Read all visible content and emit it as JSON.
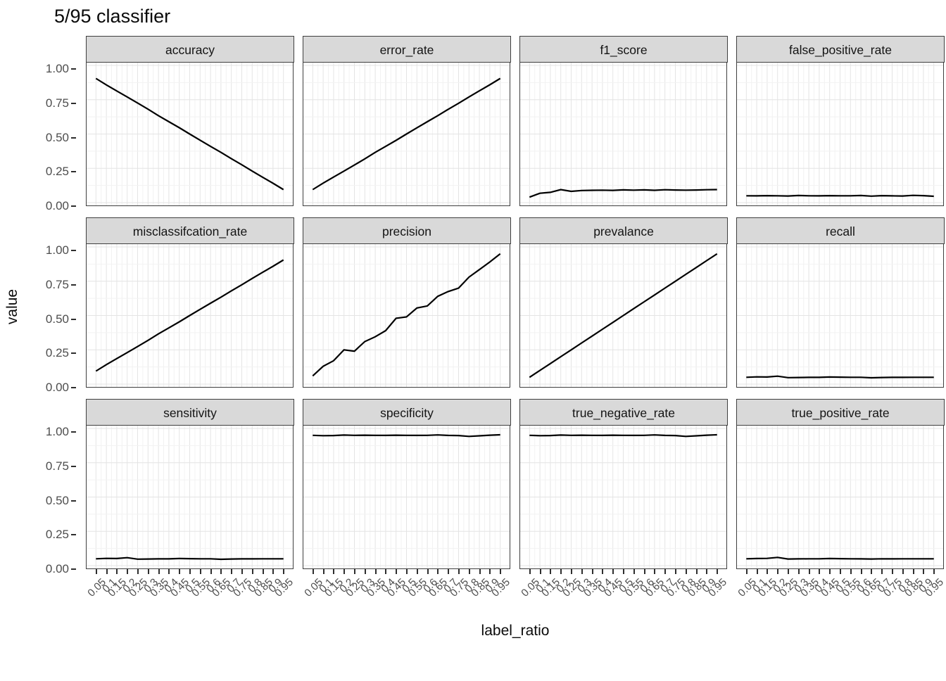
{
  "title": "5/95 classifier",
  "axes": {
    "x_title": "label_ratio",
    "y_title": "value",
    "y_tick_labels": [
      "1.00",
      "0.75",
      "0.50",
      "0.25",
      "0.00"
    ],
    "x_tick_labels": [
      "0.05",
      "0.1",
      "0.15",
      "0.2",
      "0.25",
      "0.3",
      "0.35",
      "0.4",
      "0.45",
      "0.5",
      "0.55",
      "0.6",
      "0.65",
      "0.7",
      "0.75",
      "0.8",
      "0.85",
      "0.9",
      "0.95"
    ]
  },
  "style": {
    "line_color": "#000000",
    "strip_bg": "#d9d9d9",
    "panel_border": "#3f3f3f",
    "grid_major": "#e4e4e4",
    "grid_minor": "#f2f2f2",
    "tick_color": "#2e2e2e",
    "tick_label_color": "#4d4d4d"
  },
  "chart_data": {
    "type": "line",
    "title": "5/95 classifier",
    "xlabel": "label_ratio",
    "ylabel": "value",
    "legend": "none",
    "grid": true,
    "facet_layout": {
      "rows": 3,
      "cols": 4
    },
    "x": [
      0.05,
      0.1,
      0.15,
      0.2,
      0.25,
      0.3,
      0.35,
      0.4,
      0.45,
      0.5,
      0.55,
      0.6,
      0.65,
      0.7,
      0.75,
      0.8,
      0.85,
      0.9,
      0.95
    ],
    "xlim": [
      0.005,
      0.995
    ],
    "ylim": [
      0,
      1
    ],
    "y_breaks": [
      0,
      0.25,
      0.5,
      0.75,
      1
    ],
    "y_minor_breaks": [
      0.125,
      0.375,
      0.625,
      0.875
    ],
    "facets": [
      {
        "label": "accuracy",
        "values": [
          0.905,
          0.858,
          0.814,
          0.77,
          0.726,
          0.681,
          0.634,
          0.59,
          0.546,
          0.5,
          0.455,
          0.41,
          0.366,
          0.32,
          0.276,
          0.23,
          0.185,
          0.141,
          0.095
        ]
      },
      {
        "label": "error_rate",
        "values": [
          0.095,
          0.142,
          0.186,
          0.23,
          0.274,
          0.319,
          0.366,
          0.41,
          0.454,
          0.5,
          0.545,
          0.59,
          0.634,
          0.68,
          0.724,
          0.77,
          0.815,
          0.859,
          0.905
        ]
      },
      {
        "label": "f1_score",
        "values": [
          0.04,
          0.068,
          0.075,
          0.095,
          0.082,
          0.088,
          0.09,
          0.091,
          0.089,
          0.093,
          0.091,
          0.093,
          0.09,
          0.094,
          0.092,
          0.091,
          0.092,
          0.094,
          0.095
        ]
      },
      {
        "label": "false_positive_rate",
        "values": [
          0.05,
          0.049,
          0.051,
          0.05,
          0.048,
          0.052,
          0.05,
          0.049,
          0.051,
          0.05,
          0.05,
          0.052,
          0.047,
          0.051,
          0.049,
          0.048,
          0.053,
          0.051,
          0.046
        ]
      },
      {
        "label": "misclassifcation_rate",
        "values": [
          0.095,
          0.142,
          0.186,
          0.23,
          0.274,
          0.319,
          0.366,
          0.41,
          0.454,
          0.5,
          0.545,
          0.59,
          0.634,
          0.68,
          0.724,
          0.77,
          0.815,
          0.859,
          0.905
        ]
      },
      {
        "label": "precision",
        "values": [
          0.06,
          0.13,
          0.17,
          0.25,
          0.24,
          0.31,
          0.345,
          0.39,
          0.48,
          0.49,
          0.555,
          0.57,
          0.64,
          0.675,
          0.7,
          0.78,
          0.835,
          0.89,
          0.95
        ]
      },
      {
        "label": "prevalance",
        "values": [
          0.05,
          0.1,
          0.15,
          0.2,
          0.25,
          0.3,
          0.35,
          0.4,
          0.45,
          0.5,
          0.55,
          0.6,
          0.65,
          0.7,
          0.75,
          0.8,
          0.85,
          0.9,
          0.95
        ]
      },
      {
        "label": "recall",
        "values": [
          0.05,
          0.053,
          0.052,
          0.058,
          0.047,
          0.048,
          0.049,
          0.049,
          0.052,
          0.051,
          0.05,
          0.05,
          0.046,
          0.048,
          0.049,
          0.049,
          0.05,
          0.05,
          0.05
        ]
      },
      {
        "label": "sensitivity",
        "values": [
          0.05,
          0.053,
          0.052,
          0.058,
          0.047,
          0.048,
          0.049,
          0.049,
          0.052,
          0.051,
          0.05,
          0.05,
          0.046,
          0.048,
          0.049,
          0.049,
          0.05,
          0.05,
          0.05
        ]
      },
      {
        "label": "specificity",
        "values": [
          0.95,
          0.947,
          0.948,
          0.952,
          0.95,
          0.951,
          0.95,
          0.949,
          0.951,
          0.95,
          0.949,
          0.95,
          0.953,
          0.949,
          0.948,
          0.942,
          0.946,
          0.951,
          0.954
        ]
      },
      {
        "label": "true_negative_rate",
        "values": [
          0.95,
          0.947,
          0.948,
          0.952,
          0.95,
          0.951,
          0.95,
          0.949,
          0.951,
          0.95,
          0.949,
          0.95,
          0.953,
          0.949,
          0.948,
          0.942,
          0.946,
          0.951,
          0.954
        ]
      },
      {
        "label": "true_positive_rate",
        "values": [
          0.05,
          0.052,
          0.053,
          0.06,
          0.048,
          0.049,
          0.05,
          0.05,
          0.052,
          0.051,
          0.05,
          0.049,
          0.048,
          0.05,
          0.049,
          0.05,
          0.05,
          0.05,
          0.05
        ]
      }
    ]
  }
}
